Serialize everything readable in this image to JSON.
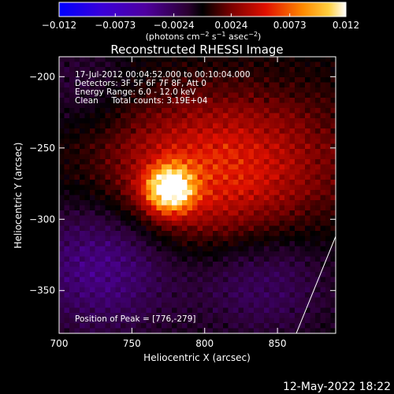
{
  "chart_data": {
    "type": "heatmap",
    "title": "Reconstructed RHESSI Image",
    "xlabel": "Heliocentric X (arcsec)",
    "ylabel": "Heliocentric Y (arcsec)",
    "xlim": [
      700,
      890
    ],
    "ylim": [
      -380,
      -186
    ],
    "x_ticks": [
      "700",
      "750",
      "800",
      "850"
    ],
    "y_ticks": [
      "−200",
      "−250",
      "−300",
      "−350"
    ],
    "colorbar": {
      "range": [
        -0.012,
        0.012
      ],
      "ticks": [
        "−0.012",
        "−0.0073",
        "−0.0024",
        "0.0024",
        "0.0073",
        "0.012"
      ],
      "label_prefix": "(photons cm",
      "label_exp1": "−2",
      "label_mid": " s",
      "label_exp2": "−1",
      "label_mid2": " asec",
      "label_exp3": "−2",
      "label_suffix": ")",
      "colormap": [
        "#0000ff",
        "#4a00b0",
        "#4f0064",
        "#000000",
        "#8a0000",
        "#ff3000",
        "#ff9a00",
        "#ffffff"
      ]
    },
    "annotations": [
      "17-Jul-2012 00:04:52.000 to 00:10:04.000",
      "Detectors: 3F 5F 6F 7F 8F, Att 0",
      "Energy Range: 6.0 - 12.0 keV",
      "Clean     Total counts: 3.19E+04"
    ],
    "peak_label": "Position of Peak = [776,-279]",
    "peak": {
      "x": 776,
      "y": -279,
      "value": 0.012
    },
    "grid": false
  },
  "footer": {
    "date": "12-May-2022 18:22"
  }
}
